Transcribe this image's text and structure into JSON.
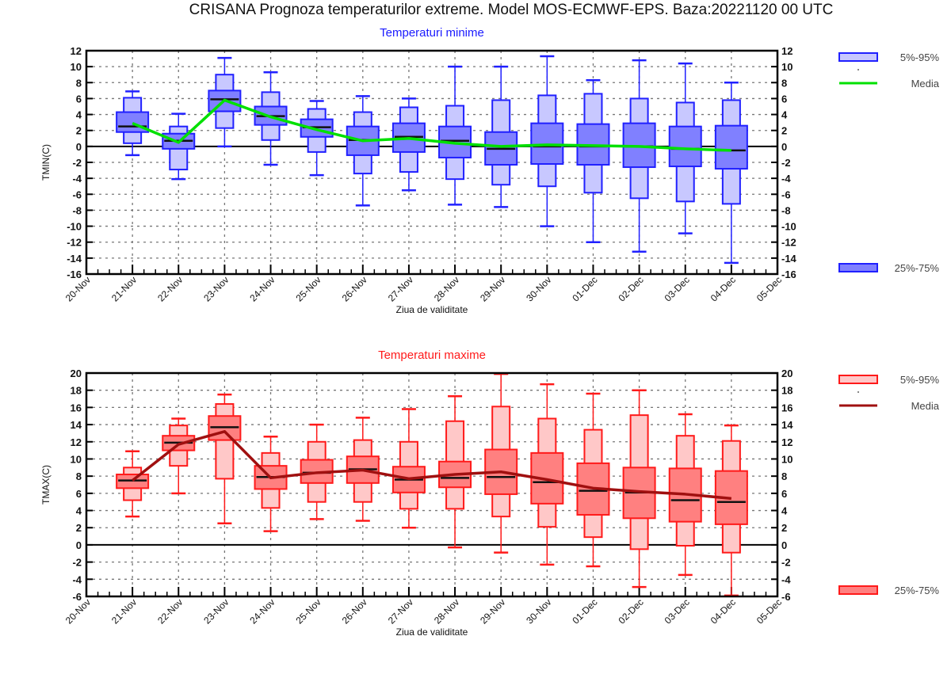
{
  "title": "CRISANA  Prognoza temperaturilor extreme.  Model MOS-ECMWF-EPS. Baza:20221120 00 UTC",
  "chart_data": [
    {
      "type": "boxplot",
      "title": "Temperaturi minime",
      "xlabel": "Ziua de validitate",
      "ylabel": "TMIN(C)",
      "ylim": [
        -16,
        12
      ],
      "yticks": [
        12,
        10,
        8,
        6,
        4,
        2,
        0,
        -2,
        -4,
        -6,
        -8,
        -10,
        -12,
        -14,
        -16
      ],
      "x_ticks": [
        "20-Nov",
        "21-Nov",
        "22-Nov",
        "23-Nov",
        "24-Nov",
        "25-Nov",
        "26-Nov",
        "27-Nov",
        "28-Nov",
        "29-Nov",
        "30-Nov",
        "01-Dec",
        "02-Dec",
        "03-Dec",
        "04-Dec",
        "05-Dec"
      ],
      "grid": true,
      "colors": {
        "outer": "#c8c8ff",
        "inner": "#8080ff",
        "edge": "#2020ff",
        "mean": "#00e000",
        "title": "#1a1aff"
      },
      "legend": {
        "position": "right",
        "outer_label": "5%-95%",
        "mean_label": "Media",
        "inner_label": "25%-75%"
      },
      "categories": [
        "21-Nov",
        "22-Nov",
        "23-Nov",
        "24-Nov",
        "25-Nov",
        "26-Nov",
        "27-Nov",
        "28-Nov",
        "29-Nov",
        "30-Nov",
        "01-Dec",
        "02-Dec",
        "03-Dec",
        "04-Dec"
      ],
      "whisker_low": [
        -1.1,
        -4.1,
        0.0,
        -2.3,
        -3.6,
        -7.4,
        -5.5,
        -7.3,
        -7.6,
        -10.0,
        -12.0,
        -13.2,
        -10.9,
        -14.6
      ],
      "p5": [
        0.4,
        -2.9,
        2.3,
        0.8,
        -0.7,
        -3.4,
        -3.2,
        -4.1,
        -4.8,
        -5.0,
        -5.8,
        -6.5,
        -6.9,
        -7.2
      ],
      "q25": [
        1.8,
        -0.3,
        4.4,
        2.7,
        1.2,
        -1.1,
        -0.7,
        -1.4,
        -2.3,
        -2.2,
        -2.3,
        -2.6,
        -2.5,
        -2.8
      ],
      "median": [
        2.5,
        0.7,
        5.9,
        3.8,
        2.4,
        0.8,
        1.2,
        0.7,
        -0.3,
        0.0,
        0.0,
        0.0,
        -0.3,
        -0.5
      ],
      "q75": [
        4.3,
        1.6,
        7.0,
        5.0,
        3.4,
        2.5,
        2.9,
        2.5,
        1.8,
        2.9,
        2.8,
        2.9,
        2.5,
        2.6
      ],
      "p95": [
        6.1,
        2.5,
        9.0,
        6.8,
        4.7,
        4.3,
        4.9,
        5.1,
        5.8,
        6.4,
        6.6,
        6.0,
        5.5,
        5.8
      ],
      "whisker_high": [
        6.9,
        4.1,
        11.1,
        9.3,
        5.7,
        6.3,
        6.0,
        10.0,
        10.0,
        11.3,
        8.3,
        10.8,
        10.4,
        8.0
      ],
      "mean": [
        2.9,
        0.5,
        5.8,
        3.7,
        2.1,
        0.7,
        1.0,
        0.4,
        0.0,
        0.2,
        0.1,
        0.0,
        -0.3,
        -0.5
      ]
    },
    {
      "type": "boxplot",
      "title": "Temperaturi maxime",
      "xlabel": "Ziua de validitate",
      "ylabel": "TMAX(C)",
      "ylim": [
        -6,
        20
      ],
      "yticks": [
        20,
        18,
        16,
        14,
        12,
        10,
        8,
        6,
        4,
        2,
        0,
        -2,
        -4,
        -6
      ],
      "x_ticks": [
        "20-Nov",
        "21-Nov",
        "22-Nov",
        "23-Nov",
        "24-Nov",
        "25-Nov",
        "26-Nov",
        "27-Nov",
        "28-Nov",
        "29-Nov",
        "30-Nov",
        "01-Dec",
        "02-Dec",
        "03-Dec",
        "04-Dec",
        "05-Dec"
      ],
      "grid": true,
      "colors": {
        "outer": "#ffc8c8",
        "inner": "#ff8080",
        "edge": "#ff1a1a",
        "mean": "#a01010",
        "title": "#ff1a1a"
      },
      "legend": {
        "position": "right",
        "outer_label": "5%-95%",
        "mean_label": "Media",
        "inner_label": "25%-75%"
      },
      "categories": [
        "21-Nov",
        "22-Nov",
        "23-Nov",
        "24-Nov",
        "25-Nov",
        "26-Nov",
        "27-Nov",
        "28-Nov",
        "29-Nov",
        "30-Nov",
        "01-Dec",
        "02-Dec",
        "03-Dec",
        "04-Dec"
      ],
      "whisker_low": [
        3.3,
        6.0,
        2.5,
        1.6,
        3.0,
        2.8,
        2.0,
        -0.3,
        -0.9,
        -2.3,
        -2.5,
        -4.9,
        -3.5,
        -5.9
      ],
      "p5": [
        5.2,
        9.2,
        7.7,
        4.3,
        5.0,
        5.0,
        4.2,
        4.2,
        3.3,
        2.1,
        0.9,
        -0.5,
        -0.1,
        -0.9
      ],
      "q25": [
        6.6,
        11.0,
        12.2,
        6.5,
        7.2,
        7.2,
        6.1,
        6.7,
        5.9,
        4.8,
        3.5,
        3.1,
        2.7,
        2.4
      ],
      "median": [
        7.5,
        11.9,
        13.7,
        7.9,
        8.4,
        8.8,
        7.6,
        7.8,
        7.9,
        7.3,
        6.3,
        6.1,
        5.2,
        5.0
      ],
      "q75": [
        8.2,
        12.7,
        15.0,
        9.2,
        9.9,
        10.3,
        9.1,
        9.7,
        11.1,
        10.7,
        9.5,
        9.0,
        8.9,
        8.6
      ],
      "p95": [
        9.0,
        13.9,
        16.4,
        10.7,
        12.0,
        12.2,
        12.0,
        14.4,
        16.1,
        14.7,
        13.4,
        15.1,
        12.7,
        12.1
      ],
      "whisker_high": [
        10.9,
        14.7,
        17.5,
        12.6,
        14.0,
        14.8,
        15.8,
        17.3,
        19.9,
        18.7,
        17.6,
        18.0,
        15.2,
        13.9
      ],
      "mean": [
        7.5,
        11.7,
        13.2,
        7.8,
        8.4,
        8.7,
        7.7,
        8.2,
        8.5,
        7.6,
        6.6,
        6.2,
        5.9,
        5.4
      ]
    }
  ]
}
